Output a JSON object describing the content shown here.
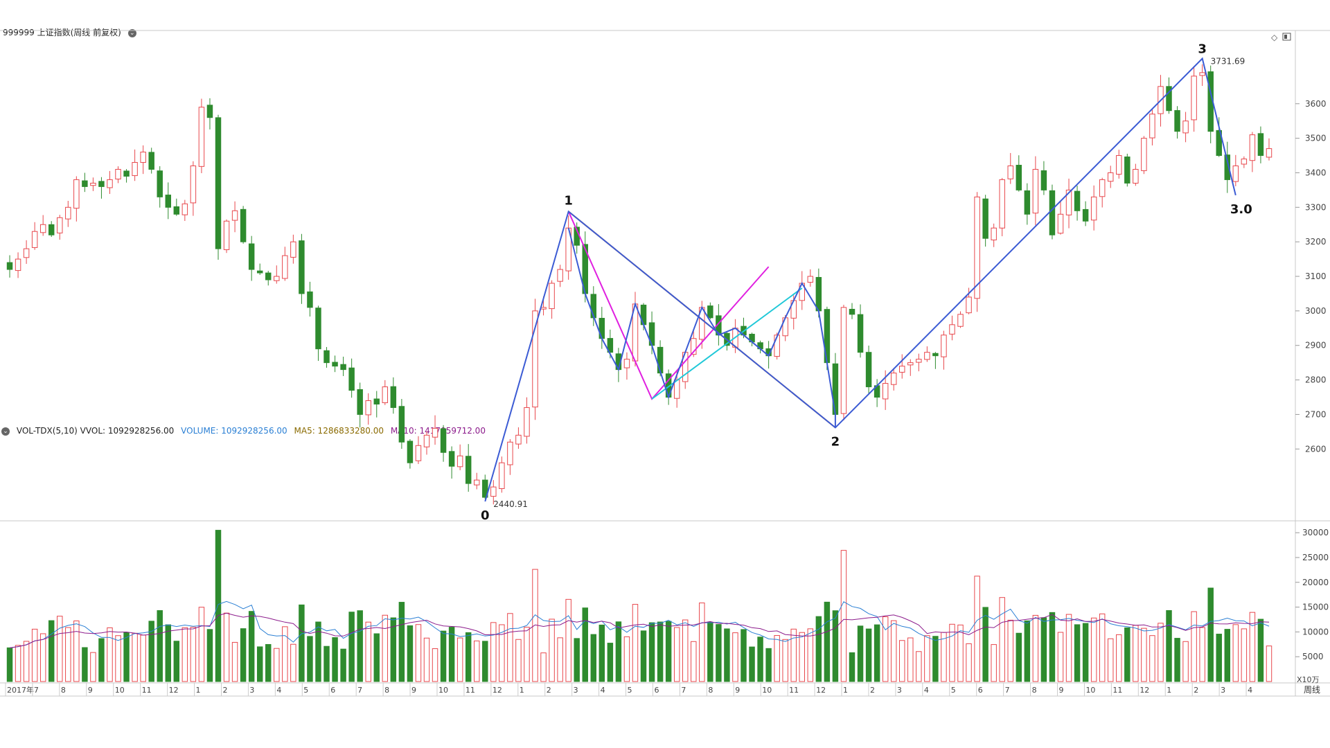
{
  "header": {
    "title": "999999 上证指数(周线 前复权)",
    "vol_title": "VOL-TDX(5,10) VVOL: 1092928256.00",
    "vol_volume": "VOLUME: 1092928256.00",
    "vol_ma5": "MA5: 1286833280.00",
    "vol_ma10": "MA10: 1417059712.00"
  },
  "colors": {
    "up": "#e8474c",
    "down": "#2e8b2e",
    "wave": "#3b5bd4",
    "orange": "#ff7f00",
    "magenta": "#e020e0",
    "cyan": "#20c8d8",
    "ma5": "#2a7fd4",
    "ma10": "#8b1a8b"
  },
  "chart_data": [
    {
      "type": "candlestick",
      "title": "999999 上证指数(周线 前复权)",
      "ylim": [
        2420,
        3760
      ],
      "y_ticks": [
        "2600",
        "2700",
        "2800",
        "2900",
        "3000",
        "3100",
        "3200",
        "3300",
        "3400",
        "3500",
        "3600"
      ],
      "start_values": [
        3130,
        3140
      ],
      "closes_path": [
        3120,
        3150,
        3180,
        3230,
        3250,
        3220,
        3270,
        3300,
        3380,
        3360,
        3370,
        3360,
        3380,
        3410,
        3390,
        3430,
        3460,
        3410,
        3330,
        3300,
        3280,
        3310,
        3420,
        3590,
        3560,
        3180,
        3260,
        3290,
        3200,
        3120,
        3110,
        3090,
        3100,
        3160,
        3200,
        3050,
        3010,
        2890,
        2850,
        2840,
        2830,
        2770,
        2700,
        2740,
        2730,
        2780,
        2720,
        2620,
        2560,
        2610,
        2640,
        2660,
        2590,
        2550,
        2580,
        2500,
        2510,
        2460,
        2490,
        2560,
        2620,
        2640,
        2720,
        3000,
        3010,
        3080,
        3120,
        3240,
        3190,
        3050,
        2980,
        2920,
        2880,
        2830,
        2860,
        3020,
        2960,
        2900,
        2820,
        2750,
        2800,
        2880,
        2920,
        3010,
        2980,
        2930,
        2900,
        2950,
        2930,
        2910,
        2890,
        2870,
        2930,
        2980,
        3030,
        3080,
        3100,
        3000,
        2850,
        2700,
        3010,
        2990,
        2880,
        2780,
        2750,
        2790,
        2820,
        2840,
        2850,
        2860,
        2880,
        2870,
        2930,
        2960,
        2990,
        3040,
        3330,
        3210,
        3240,
        3380,
        3420,
        3350,
        3280,
        3410,
        3350,
        3220,
        3280,
        3350,
        3290,
        3260,
        3330,
        3380,
        3400,
        3450,
        3370,
        3410,
        3500,
        3570,
        3650,
        3580,
        3520,
        3550,
        3680,
        3690,
        3520,
        3450,
        3380,
        3420,
        3440,
        3510,
        3450,
        3470
      ],
      "pivot_labels": [
        "0",
        "1",
        "2",
        "3",
        "3.0"
      ],
      "price_annotations": [
        "2440.91",
        "3731.69"
      ],
      "waves": {
        "blue": [
          [
            0,
            2448
          ],
          [
            1,
            3288
          ],
          [
            2,
            2662
          ],
          [
            3,
            3731
          ],
          [
            4,
            3335
          ]
        ],
        "orange": [
          [
            3288,
            2662
          ]
        ],
        "magenta": [
          [
            3288,
            2745,
            3128
          ]
        ],
        "cyan": [
          [
            2745,
            3066
          ]
        ]
      }
    },
    {
      "type": "bar",
      "title": "VOL-TDX(5,10)",
      "ylim": [
        0,
        31000
      ],
      "y_ticks": [
        "5000",
        "10000",
        "15000",
        "20000",
        "25000",
        "30000"
      ],
      "unit_label": "X10万",
      "x_ticks": [
        "2017年",
        "7",
        "8",
        "9",
        "10",
        "11",
        "12",
        "1",
        "2",
        "3",
        "4",
        "5",
        "6",
        "7",
        "8",
        "9",
        "10",
        "11",
        "12",
        "1",
        "2",
        "3",
        "4",
        "5",
        "6",
        "7",
        "8",
        "9",
        "10",
        "11",
        "12",
        "1",
        "2",
        "3",
        "4",
        "5",
        "6",
        "7",
        "8",
        "9",
        "10",
        "11",
        "12",
        "1",
        "2",
        "3",
        "4"
      ],
      "period_label": "周线",
      "series": [
        {
          "name": "VOLUME",
          "values": "one per candle"
        },
        {
          "name": "MA5"
        },
        {
          "name": "MA10"
        }
      ]
    }
  ]
}
